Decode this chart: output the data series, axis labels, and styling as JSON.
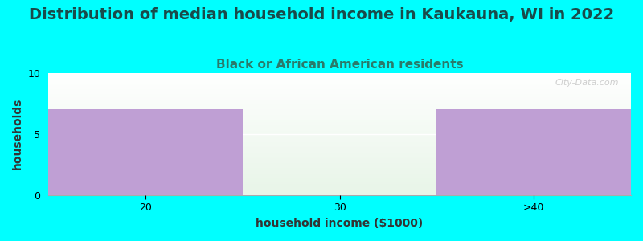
{
  "title": "Distribution of median household income in Kaukauna, WI in 2022",
  "subtitle": "Black or African American residents",
  "categories": [
    "20",
    "30",
    ">40"
  ],
  "values": [
    7,
    0,
    7
  ],
  "bar_color": "#bf9fd4",
  "background_color": "#00ffff",
  "xlabel": "household income ($1000)",
  "ylabel": "households",
  "ylim": [
    0,
    10
  ],
  "yticks": [
    0,
    5,
    10
  ],
  "title_fontsize": 14,
  "subtitle_fontsize": 11,
  "axis_label_fontsize": 10,
  "tick_fontsize": 9,
  "title_color": "#1a4a4a",
  "subtitle_color": "#2a7a6a",
  "watermark": "City-Data.com"
}
